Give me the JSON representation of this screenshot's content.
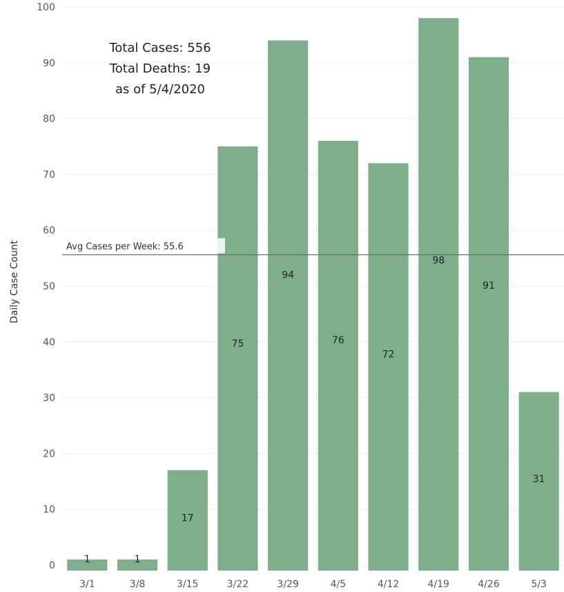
{
  "chart_data": {
    "type": "bar",
    "categories": [
      "3/1",
      "3/8",
      "3/15",
      "3/22",
      "3/29",
      "4/5",
      "4/12",
      "4/19",
      "4/26",
      "5/3"
    ],
    "values": [
      1,
      1,
      17,
      75,
      94,
      76,
      72,
      98,
      91,
      31
    ],
    "ylabel": "Daily Case Count",
    "xlabel": "",
    "ylim": [
      0,
      100
    ],
    "yticks": [
      0,
      10,
      20,
      30,
      40,
      50,
      60,
      70,
      80,
      90,
      100
    ],
    "grid": true,
    "bar_color": "#7fae8a",
    "reference_line": {
      "value": 55.6,
      "label": "Avg Cases per Week: 55.6",
      "color": "#6b6b6b"
    },
    "annotation": {
      "lines": [
        "Total Cases: 556",
        "Total Deaths: 19",
        "as of 5/4/2020"
      ]
    }
  }
}
